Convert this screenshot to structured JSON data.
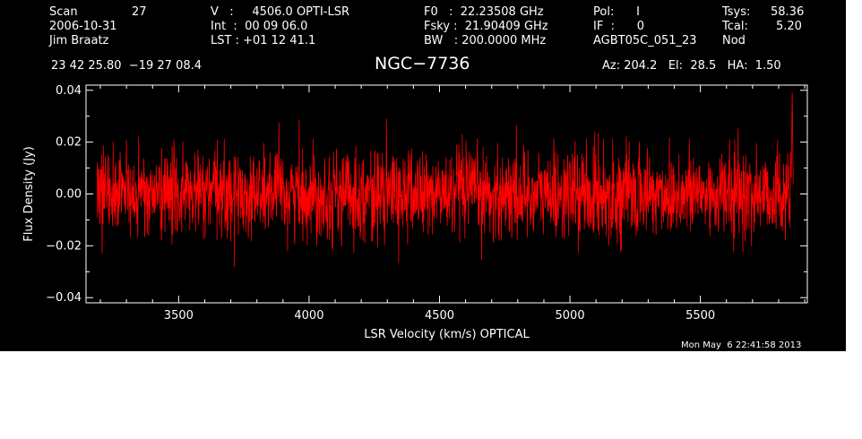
{
  "header": {
    "col1": [
      "Scan",
      "2006-10-31",
      "Jim Braatz"
    ],
    "scan_number": "27",
    "col2": [
      "V   :     4506.0 OPTI-LSR",
      "Int  :  00 09 06.0",
      "LST : +01 12 41.1"
    ],
    "col3": [
      "F0   :  22.23508 GHz",
      "Fsky :  21.90409 GHz",
      "BW   : 200.0000 MHz"
    ],
    "col4": [
      "Pol:      I",
      "IF  :      0",
      "AGBT05C_051_23"
    ],
    "col5_labels": [
      "Tsys:",
      "Tcal:",
      "Nod"
    ],
    "col5_values": [
      "58.36",
      "5.20",
      ""
    ],
    "coords": "23 42 25.80  −19 27 08.4",
    "source": "NGC−7736",
    "az_el_ha": "Az: 204.2   El:  28.5   HA:  1.50",
    "timestamp": "Mon May  6 22:41:58 2013"
  },
  "chart_data": {
    "type": "line",
    "xlabel": "LSR Velocity (km/s) OPTICAL",
    "ylabel": "Flux Density (Jy)",
    "xlim": [
      3145,
      5910
    ],
    "ylim": [
      -0.042,
      0.042
    ],
    "x_ticks": [
      3500,
      4000,
      4500,
      5000,
      5500
    ],
    "x_tick_labels": [
      "3500",
      "4000",
      "4500",
      "5000",
      "5500"
    ],
    "y_ticks": [
      -0.04,
      -0.02,
      0.0,
      0.02,
      0.04
    ],
    "y_tick_labels": [
      "−0.04",
      "−0.02",
      "0.00",
      "0.02",
      "0.04"
    ],
    "series": [
      {
        "color": "#ff0000",
        "x_start": 3188,
        "x_end": 5848,
        "n_points": 2400,
        "mean": 0.0,
        "noise_rms": 0.0085,
        "peak_min": -0.035,
        "peak_max": 0.039
      }
    ]
  }
}
